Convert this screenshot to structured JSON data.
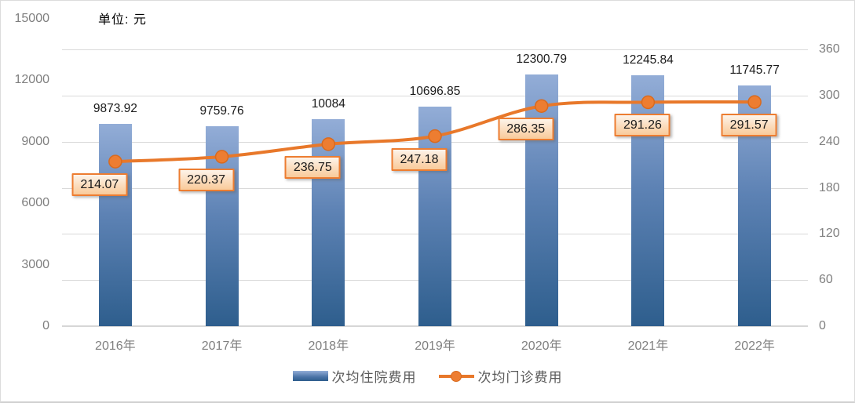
{
  "unit_label": "单位: 元",
  "colors": {
    "bar_gradient_top": "#93add7",
    "bar_gradient_bottom": "#2e5e8d",
    "line": "#e8782a",
    "marker_fill": "#ed7d31",
    "marker_stroke": "#d96a1e",
    "label_box_border": "#ed7d31",
    "label_box_fill_top": "#fdf4ea",
    "label_box_fill_bottom": "#f9cb9a",
    "grid": "#d9d9d9",
    "axis_text": "#7f7f7f",
    "legend_text": "#595959",
    "value_text": "#1a1a1a"
  },
  "legend": {
    "items": [
      {
        "label": "次均住院费用",
        "marker": "bar-swatch"
      },
      {
        "label": "次均门诊费用",
        "marker": "line-marker-swatch"
      }
    ]
  },
  "chart_data": {
    "type": "combo (bar + line)",
    "title": "",
    "unit_label": "单位: 元",
    "categories": [
      "2016年",
      "2017年",
      "2018年",
      "2019年",
      "2020年",
      "2021年",
      "2022年"
    ],
    "series": [
      {
        "name": "次均住院费用",
        "type": "bar",
        "axis": "left",
        "values": [
          9873.92,
          9759.76,
          10084,
          10696.85,
          12300.79,
          12245.84,
          11745.77
        ],
        "labels": [
          "9873.92",
          "9759.76",
          "10084",
          "10696.85",
          "12300.79",
          "12245.84",
          "11745.77"
        ]
      },
      {
        "name": "次均门诊费用",
        "type": "line",
        "axis": "right",
        "values": [
          214.07,
          220.37,
          236.75,
          247.18,
          286.35,
          291.26,
          291.57
        ],
        "labels": [
          "214.07",
          "220.37",
          "236.75",
          "247.18",
          "286.35",
          "291.26",
          "291.57"
        ]
      }
    ],
    "left_axis": {
      "min": 0,
      "max": 15000,
      "step": 3000,
      "tick_labels": [
        "0",
        "3000",
        "6000",
        "9000",
        "12000",
        "15000"
      ]
    },
    "right_axis": {
      "min": 0,
      "max": 360,
      "step": 60,
      "tick_labels": [
        "0",
        "60",
        "120",
        "180",
        "240",
        "300",
        "360"
      ]
    },
    "grid": true,
    "legend_position": "bottom"
  }
}
